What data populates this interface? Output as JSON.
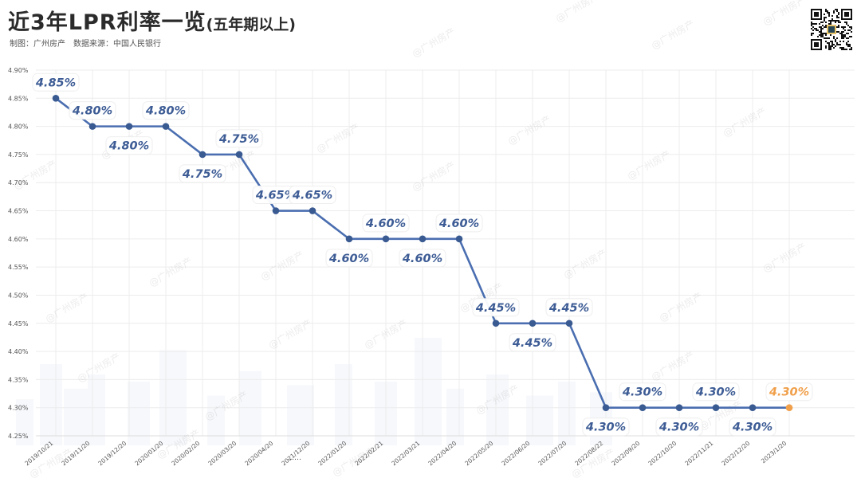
{
  "header": {
    "title": "近3年LPR利率一览",
    "title_suffix": "(五年期以上)",
    "maker": "制图：广州房产",
    "source": "数据来源：中国人民银行"
  },
  "watermark": "@广州房产",
  "colors": {
    "line": "#4a6eb0",
    "point": "#3a5a92",
    "label": "#3d5c95",
    "highlight": "#f0a04b",
    "grid": "#ececec",
    "axis_text": "#555555"
  },
  "chart_data": {
    "type": "line",
    "title": "近3年LPR利率一览(五年期以上)",
    "xlabel": "",
    "ylabel": "",
    "ylim": [
      4.25,
      4.9
    ],
    "yticks": [
      "4.25%",
      "4.30%",
      "4.35%",
      "4.40%",
      "4.45%",
      "4.50%",
      "4.55%",
      "4.60%",
      "4.65%",
      "4.70%",
      "4.75%",
      "4.80%",
      "4.85%",
      "4.90%"
    ],
    "grid": true,
    "gap_marker": "……",
    "series": [
      {
        "points": [
          {
            "x": "2019/10/21",
            "y": 4.85,
            "label": "4.85%"
          },
          {
            "x": "2019/11/20",
            "y": 4.8,
            "label": "4.80%"
          },
          {
            "x": "2019/12/20",
            "y": 4.8,
            "label": "4.80%"
          },
          {
            "x": "2020/01/20",
            "y": 4.8,
            "label": "4.80%"
          },
          {
            "x": "2020/02/20",
            "y": 4.75,
            "label": "4.75%"
          },
          {
            "x": "2020/03/20",
            "y": 4.75,
            "label": "4.75%"
          },
          {
            "x": "2020/04/20",
            "y": 4.65,
            "label": "4.65%"
          },
          {
            "x": "2021/12/20",
            "y": 4.65,
            "label": "4.65%"
          },
          {
            "x": "2022/01/20",
            "y": 4.6,
            "label": "4.60%"
          },
          {
            "x": "2022/02/21",
            "y": 4.6,
            "label": "4.60%"
          },
          {
            "x": "2022/03/21",
            "y": 4.6,
            "label": "4.60%"
          },
          {
            "x": "2022/04/20",
            "y": 4.6,
            "label": "4.60%"
          },
          {
            "x": "2022/05/20",
            "y": 4.45,
            "label": "4.45%"
          },
          {
            "x": "2022/06/20",
            "y": 4.45,
            "label": "4.45%"
          },
          {
            "x": "2022/07/20",
            "y": 4.45,
            "label": "4.45%"
          },
          {
            "x": "2022/08/22",
            "y": 4.3,
            "label": "4.30%"
          },
          {
            "x": "2022/09/20",
            "y": 4.3,
            "label": "4.30%"
          },
          {
            "x": "2022/10/20",
            "y": 4.3,
            "label": "4.30%"
          },
          {
            "x": "2022/11/21",
            "y": 4.3,
            "label": "4.30%"
          },
          {
            "x": "2022/12/20",
            "y": 4.3,
            "label": "4.30%"
          },
          {
            "x": "2023/1/20",
            "y": 4.3,
            "label": "4.30%"
          }
        ]
      }
    ]
  }
}
